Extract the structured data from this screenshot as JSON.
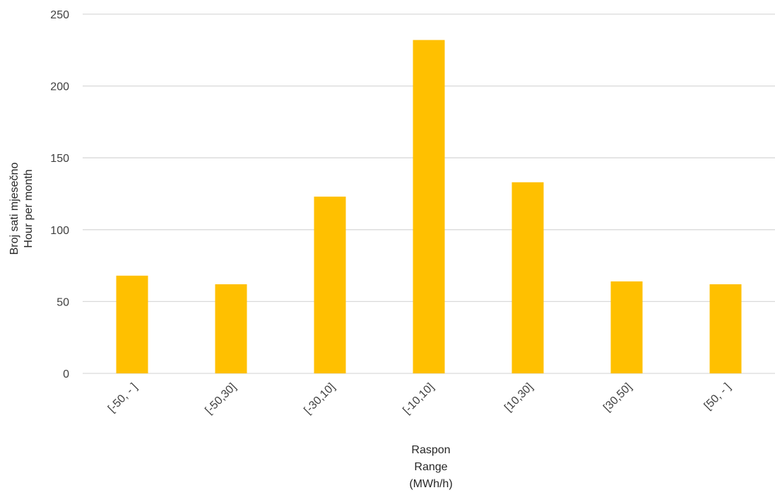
{
  "chart_data": {
    "type": "bar",
    "categories": [
      "[-50, - ]",
      "[-50,30]",
      "[-30,10]",
      "[-10,10]",
      "[10,30]",
      "[30,50]",
      "[50, - ]"
    ],
    "values": [
      68,
      62,
      123,
      232,
      133,
      64,
      62
    ],
    "ylim": [
      0,
      250
    ],
    "yticks": [
      0,
      50,
      100,
      150,
      200,
      250
    ],
    "ylabel_lines": [
      "Broj sati mjesečno",
      "Hour per month"
    ],
    "xlabel_lines": [
      "Raspon",
      "Range",
      "(MWh/h)"
    ],
    "grid": true,
    "legend": "none",
    "bar_color": "#FFC000",
    "gridline_color": "#D9D9D9"
  }
}
